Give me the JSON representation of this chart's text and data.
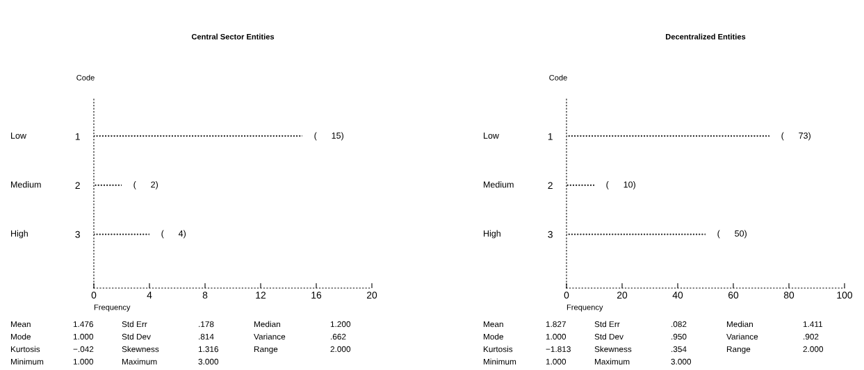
{
  "chart_data": [
    {
      "type": "bar",
      "orientation": "horizontal",
      "title": "Central Sector Entities",
      "ylabel": "Code",
      "xlabel": "Frequency",
      "categories": [
        "1",
        "2",
        "3"
      ],
      "values": [
        15,
        2,
        4
      ],
      "color": "#000000",
      "value_labels": [
        "(      15)",
        "(      2)",
        "(      4)"
      ],
      "xlim": [
        0,
        20
      ],
      "xticks": [
        0,
        4,
        8,
        12,
        16,
        20
      ],
      "grid": false,
      "annotations": [
        "Low",
        "Medium",
        "High",
        "Mean",
        "1.476",
        "Std Err",
        ".178",
        "Median",
        "1.200",
        "Mode",
        "1.000",
        "Std Dev",
        ".814",
        "Variance",
        ".662",
        "Kurtosis",
        "−.042",
        "Skewness",
        "1.316",
        "Range",
        "2.000",
        "Minimum",
        "1.000",
        "Maximum",
        "3.000"
      ]
    },
    {
      "type": "bar",
      "orientation": "horizontal",
      "title": "Decentralized Entities",
      "ylabel": "Code",
      "xlabel": "Frequency",
      "categories": [
        "1",
        "2",
        "3"
      ],
      "values": [
        73,
        10,
        50
      ],
      "color": "#000000",
      "value_labels": [
        "(      73)",
        "(      10)",
        "(      50)"
      ],
      "xlim": [
        0,
        100
      ],
      "xticks": [
        0,
        20,
        40,
        60,
        80,
        100
      ],
      "grid": false,
      "annotations": [
        "Low",
        "Medium",
        "High",
        "Mean",
        "1.827",
        "Std Err",
        ".082",
        "Median",
        "1.411",
        "Mode",
        "1.000",
        "Std Dev",
        ".950",
        "Variance",
        ".902",
        "Kurtosis",
        "−1.813",
        "Skewness",
        ".354",
        "Range",
        "2.000",
        "Minimum",
        "1.000",
        "Maximum",
        "3.000"
      ]
    }
  ]
}
